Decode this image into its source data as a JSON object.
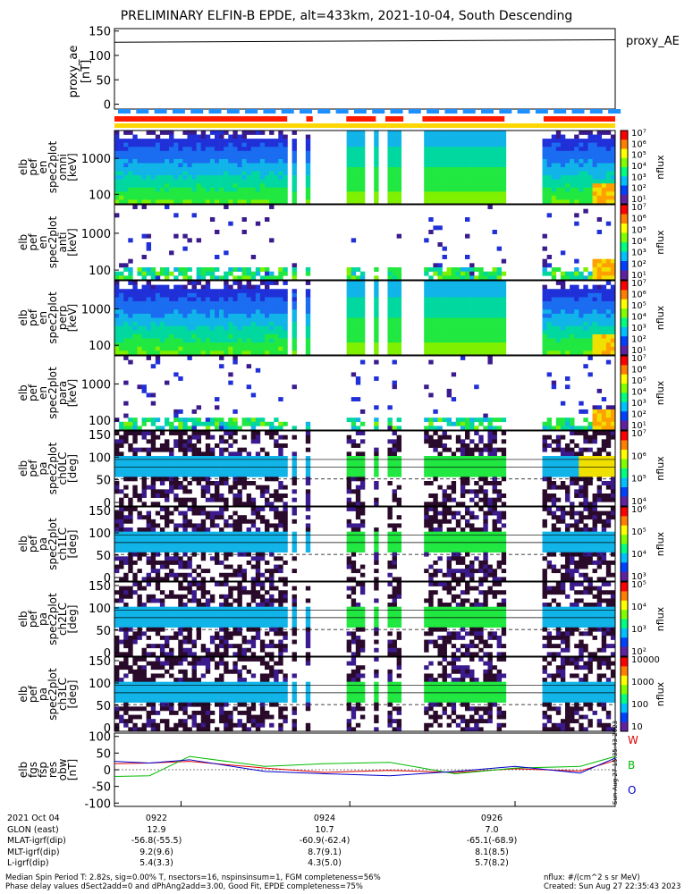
{
  "title": "PRELIMINARY ELFIN-B EPDE, alt=433km, 2021-10-04, South Descending",
  "colors": {
    "red_bar": "#ff1a00",
    "blue_bar": "#1e8fff",
    "yellow_bar": "#ffd700",
    "frame": "#000000"
  },
  "chart_data": [
    {
      "type": "line",
      "ylabel": [
        "proxy_ae",
        "[nT]"
      ],
      "ylim": [
        -10,
        155
      ],
      "yticks": [
        "150",
        "100",
        "50",
        "0"
      ],
      "legend": "proxy_AE",
      "series": [
        {
          "name": "proxy_AE",
          "x": [
            0,
            1
          ],
          "values": [
            127,
            132
          ]
        }
      ]
    },
    {
      "type": "heatmap",
      "ylabel": [
        "elb",
        "pef",
        "en",
        "spec2plot",
        "omni",
        "[keV]"
      ],
      "yscale": "log",
      "yticks": [
        "1000",
        "100"
      ],
      "colorbar": {
        "label": "nflux",
        "ticks": [
          "10⁷",
          "10⁶",
          "10⁵",
          "10⁴",
          "10³",
          "10²",
          "10¹"
        ]
      }
    },
    {
      "type": "heatmap",
      "ylabel": [
        "elb",
        "pef",
        "en",
        "spec2plot",
        "anti",
        "[keV]"
      ],
      "yscale": "log",
      "yticks": [
        "1000",
        "100"
      ],
      "colorbar": {
        "label": "nflux",
        "ticks": [
          "10⁷",
          "10⁶",
          "10⁵",
          "10⁴",
          "10³",
          "10²",
          "10¹"
        ]
      }
    },
    {
      "type": "heatmap",
      "ylabel": [
        "elb",
        "pef",
        "en",
        "spec2plot",
        "perp",
        "[keV]"
      ],
      "yscale": "log",
      "yticks": [
        "1000",
        "100"
      ],
      "colorbar": {
        "label": "nflux",
        "ticks": [
          "10⁷",
          "10⁶",
          "10⁵",
          "10⁴",
          "10³",
          "10²",
          "10¹"
        ]
      }
    },
    {
      "type": "heatmap",
      "ylabel": [
        "elb",
        "pef",
        "en",
        "spec2plot",
        "para",
        "[keV]"
      ],
      "yscale": "log",
      "yticks": [
        "1000",
        "100"
      ],
      "colorbar": {
        "label": "nflux",
        "ticks": [
          "10⁷",
          "10⁶",
          "10⁵",
          "10⁴",
          "10³",
          "10²",
          "10¹"
        ]
      }
    },
    {
      "type": "heatmap",
      "ylabel": [
        "elb",
        "pef",
        "pa",
        "spec2plot",
        "ch0LC",
        "[deg]"
      ],
      "yticks": [
        "150",
        "100",
        "50",
        "0"
      ],
      "colorbar": {
        "label": "nflux",
        "ticks": [
          "10⁷",
          "10⁶",
          "10⁵",
          "10⁴"
        ]
      }
    },
    {
      "type": "heatmap",
      "ylabel": [
        "elb",
        "pef",
        "pa",
        "spec2plot",
        "ch1LC",
        "[deg]"
      ],
      "yticks": [
        "150",
        "100",
        "50",
        "0"
      ],
      "colorbar": {
        "label": "nflux",
        "ticks": [
          "10⁶",
          "10⁵",
          "10⁴",
          "10³"
        ]
      }
    },
    {
      "type": "heatmap",
      "ylabel": [
        "elb",
        "pef",
        "pa",
        "spec2plot",
        "ch2LC",
        "[deg]"
      ],
      "yticks": [
        "150",
        "100",
        "50",
        "0"
      ],
      "colorbar": {
        "label": "nflux",
        "ticks": [
          "10⁵",
          "10⁴",
          "10³",
          "10²"
        ]
      }
    },
    {
      "type": "heatmap",
      "ylabel": [
        "elb",
        "pef",
        "pa",
        "spec2plot",
        "ch3LC",
        "[deg]"
      ],
      "yticks": [
        "150",
        "100",
        "50",
        "0"
      ],
      "colorbar": {
        "label": "nflux",
        "ticks": [
          "10000",
          "1000",
          "100",
          "10"
        ]
      }
    },
    {
      "type": "line",
      "ylabel": [
        "elb",
        "fgs",
        "fsp",
        "res",
        "obw",
        "[nT]"
      ],
      "ylim": [
        -110,
        110
      ],
      "yticks": [
        "100",
        "50",
        "0",
        "-50",
        "-100"
      ],
      "legend": [
        "W",
        "B",
        "O"
      ],
      "series": [
        {
          "name": "W",
          "color": "#e00000",
          "x": [
            0,
            0.07,
            0.15,
            0.3,
            0.42,
            0.55,
            0.68,
            0.8,
            0.93,
            1
          ],
          "values": [
            18,
            20,
            25,
            5,
            -8,
            -2,
            -8,
            3,
            -4,
            28
          ]
        },
        {
          "name": "B",
          "color": "#00bb00",
          "x": [
            0,
            0.07,
            0.15,
            0.3,
            0.42,
            0.55,
            0.68,
            0.8,
            0.93,
            1
          ],
          "values": [
            -20,
            -18,
            40,
            10,
            18,
            22,
            -12,
            5,
            10,
            40
          ]
        },
        {
          "name": "O",
          "color": "#0000cc",
          "x": [
            0,
            0.07,
            0.15,
            0.3,
            0.42,
            0.55,
            0.68,
            0.8,
            0.93,
            1
          ],
          "values": [
            25,
            20,
            30,
            -5,
            -12,
            -18,
            -5,
            10,
            -10,
            35
          ]
        }
      ]
    }
  ],
  "xaxis": {
    "ticks": [
      "0922",
      "0924",
      "0926"
    ]
  },
  "ephemeris": {
    "labels": [
      "2021 Oct 04",
      "GLON (east)",
      "MLAT-igrf(dip)",
      "MLT-igrf(dip)",
      "L-igrf(dip)"
    ],
    "col1": [
      "0922",
      "12.9",
      "-56.8(-55.5)",
      "9.2(9.6)",
      "5.4(3.3)"
    ],
    "col2": [
      "0924",
      "10.7",
      "-60.9(-62.4)",
      "8.7(9.1)",
      "4.3(5.0)"
    ],
    "col3": [
      "0926",
      "7.0",
      "-65.1(-68.9)",
      "8.1(8.5)",
      "5.7(8.2)"
    ]
  },
  "footer": {
    "line1": "Median Spin Period T: 2.82s, sig=0.00% T, nsectors=16, nspinsinsum=1, FGM completeness=56%",
    "line2": "Phase delay values dSect2add=0 and dPhAng2add=3.00, Good Fit, EPDE completeness=75%",
    "units": "nflux: #/(cm^2 s sr MeV)",
    "created": "Created: Sun Aug 27 22:35:43 2023",
    "side": "Sun Aug 27 15:35:43 2023"
  }
}
